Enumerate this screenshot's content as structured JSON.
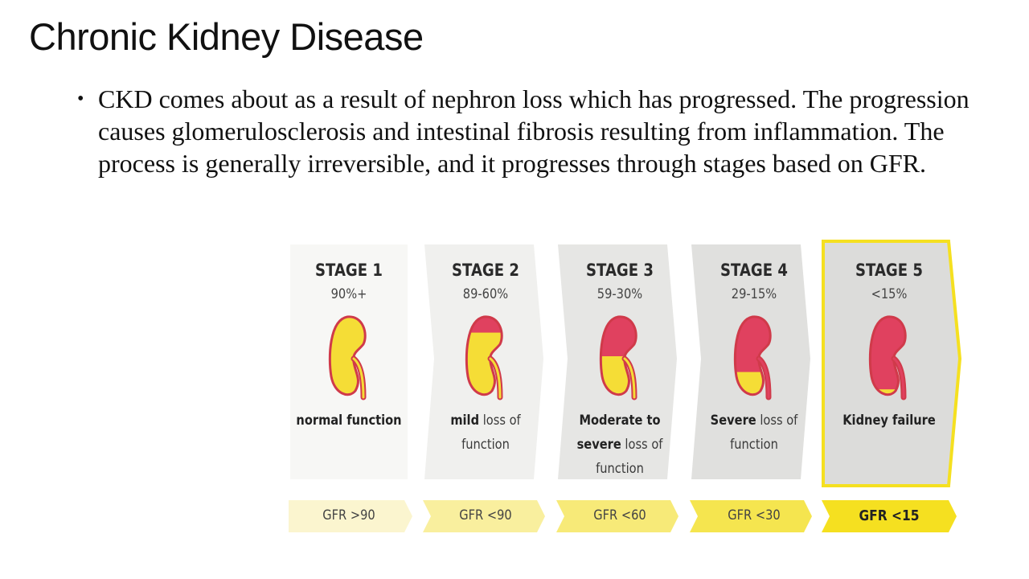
{
  "slide": {
    "title": "Chronic Kidney Disease",
    "bullet": "CKD comes about as  a result of nephron loss which has progressed. The progression causes glomerulosclerosis and intestinal fibrosis resulting from inflammation. The process is generally irreversible, and it progresses through stages based on GFR."
  },
  "colors": {
    "kidney_healthy": "#f5dd36",
    "kidney_damaged": "#e0415f",
    "kidney_outline": "#d03a4a",
    "panel_gray": "#ececec",
    "stage5_border": "#f5e020",
    "gfr_pale": "#fbf3c0",
    "gfr_strong": "#f5e020"
  },
  "stages": [
    {
      "label": "STAGE 1",
      "percent": "90%+",
      "desc_parts": [
        {
          "text": "normal function",
          "bold": true
        }
      ],
      "gfr": "GFR >90",
      "damaged_fraction": 0.0
    },
    {
      "label": "STAGE 2",
      "percent": "89-60%",
      "desc_parts": [
        {
          "text": "mild",
          "bold": true
        },
        {
          "text": " loss of function",
          "bold": false
        }
      ],
      "gfr": "GFR <90",
      "damaged_fraction": 0.2
    },
    {
      "label": "STAGE 3",
      "percent": "59-30%",
      "desc_parts": [
        {
          "text": "Moderate to severe",
          "bold": true
        },
        {
          "text": " loss of function",
          "bold": false
        }
      ],
      "gfr": "GFR <60",
      "damaged_fraction": 0.5
    },
    {
      "label": "STAGE 4",
      "percent": "29-15%",
      "desc_parts": [
        {
          "text": "Severe",
          "bold": true
        },
        {
          "text": " loss of function",
          "bold": false
        }
      ],
      "gfr": "GFR <30",
      "damaged_fraction": 0.7
    },
    {
      "label": "STAGE 5",
      "percent": "<15%",
      "desc_parts": [
        {
          "text": "Kidney failure",
          "bold": true
        }
      ],
      "gfr": "GFR <15",
      "damaged_fraction": 0.92
    }
  ]
}
